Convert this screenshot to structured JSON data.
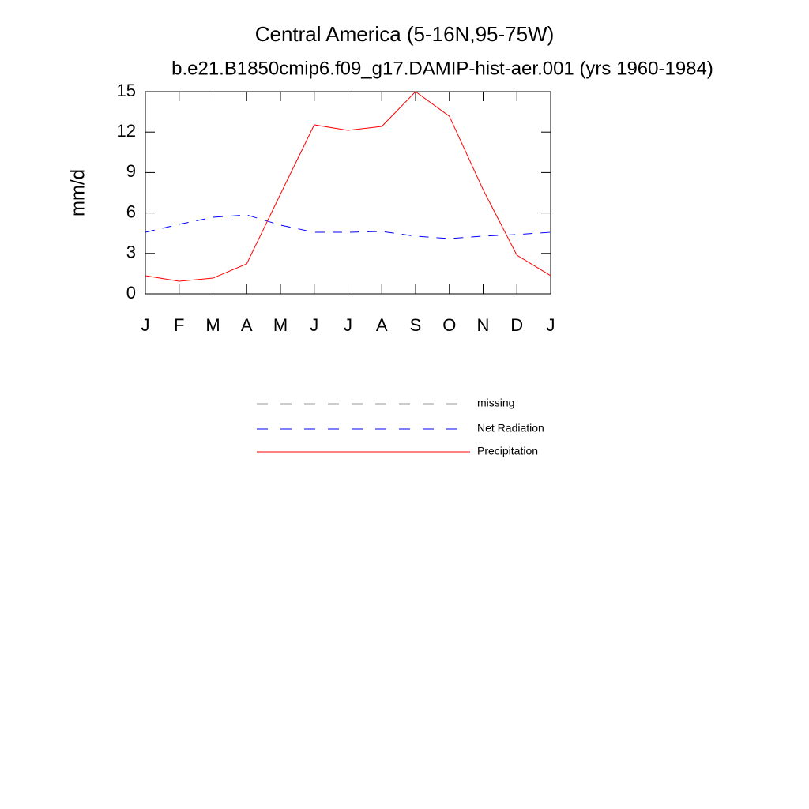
{
  "chart_data": {
    "type": "line",
    "title": "Central America (5-16N,95-75W)",
    "subtitle": "b.e21.B1850cmip6.f09_g17.DAMIP-hist-aer.001 (yrs 1960-1984)",
    "ylabel": "mm/d",
    "categories": [
      "J",
      "F",
      "M",
      "A",
      "M",
      "J",
      "J",
      "A",
      "S",
      "O",
      "N",
      "D",
      "J"
    ],
    "series": [
      {
        "name": "missing",
        "color": "#999999",
        "dashed": true,
        "values": [
          null,
          null,
          null,
          null,
          null,
          null,
          null,
          null,
          null,
          null,
          null,
          null,
          null
        ]
      },
      {
        "name": "Net Radiation",
        "color": "#0000ff",
        "dashed": true,
        "values": [
          4.57,
          5.16,
          5.68,
          5.86,
          5.1,
          4.57,
          4.57,
          4.63,
          4.28,
          4.1,
          4.28,
          4.4,
          4.57
        ]
      },
      {
        "name": "Precipitation",
        "color": "#ff0000",
        "dashed": false,
        "values": [
          1.35,
          0.94,
          1.17,
          2.23,
          7.4,
          12.54,
          12.13,
          12.42,
          15.0,
          13.18,
          7.73,
          2.87,
          1.35
        ]
      }
    ],
    "ylim": [
      0,
      15
    ],
    "yticks": [
      0,
      3,
      6,
      9,
      12,
      15
    ]
  }
}
